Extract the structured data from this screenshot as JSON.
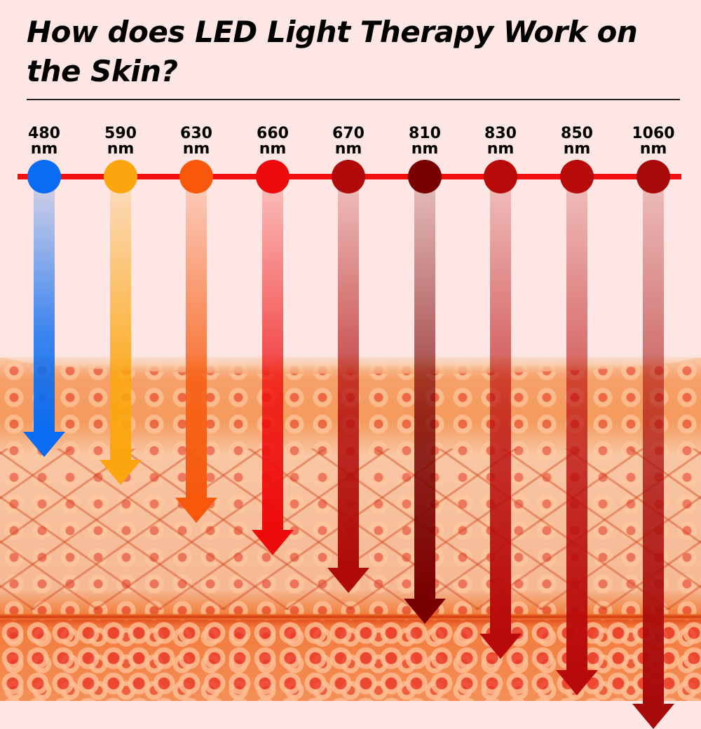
{
  "title": "How does LED Light Therapy Work on the Skin?",
  "colors": {
    "background": "#fde6e4",
    "baseline": "#f01010"
  },
  "wavelengths": [
    {
      "label_value": "480",
      "unit": "nm",
      "color": "#0a6cf2"
    },
    {
      "label_value": "590",
      "unit": "nm",
      "color": "#fba60e"
    },
    {
      "label_value": "630",
      "unit": "nm",
      "color": "#f7580c"
    },
    {
      "label_value": "660",
      "unit": "nm",
      "color": "#ee0a0a"
    },
    {
      "label_value": "670",
      "unit": "nm",
      "color": "#b00a0a"
    },
    {
      "label_value": "810",
      "unit": "nm",
      "color": "#7a0000"
    },
    {
      "label_value": "830",
      "unit": "nm",
      "color": "#b80a0a"
    },
    {
      "label_value": "850",
      "unit": "nm",
      "color": "#b80a0a"
    },
    {
      "label_value": "1060",
      "unit": "nm",
      "color": "#a80a0a"
    }
  ]
}
